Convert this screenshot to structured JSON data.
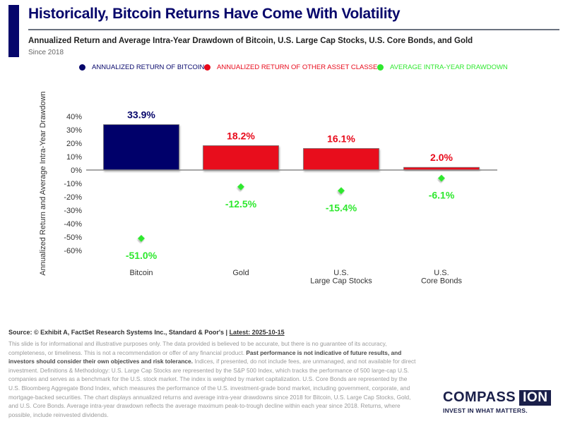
{
  "header": {
    "title": "Historically, Bitcoin Returns Have Come With Volatility",
    "subtitle": "Annualized Return and Average Intra-Year Drawdown of Bitcoin, U.S. Large Cap Stocks, U.S. Core Bonds, and Gold",
    "since": "Since 2018"
  },
  "colors": {
    "bitcoin": "#06066b",
    "other": "#e8091a",
    "drawdown": "#2fe82f",
    "brand": "#1a1f4a"
  },
  "chart_data": {
    "type": "bar",
    "title": "Annualized Return and Average Intra-Year Drawdown of Bitcoin, U.S. Large Cap Stocks, U.S. Core Bonds, and Gold",
    "ylabel": "Annualized Return and Average Intra-Year Drawdown",
    "xlabel": "",
    "ylim": [
      -60,
      40
    ],
    "yticks": [
      "40%",
      "30%",
      "20%",
      "10%",
      "0%",
      "-10%",
      "-20%",
      "-30%",
      "-40%",
      "-50%",
      "-60%"
    ],
    "ytick_values": [
      40,
      30,
      20,
      10,
      0,
      -10,
      -20,
      -30,
      -40,
      -50,
      -60
    ],
    "categories": [
      [
        "Bitcoin"
      ],
      [
        "Gold"
      ],
      [
        "U.S.",
        "Large Cap Stocks"
      ],
      [
        "U.S.",
        "Core Bonds"
      ]
    ],
    "legend_position": "top",
    "legend": [
      {
        "label": "ANNUALIZED RETURN OF BITCOIN",
        "color_key": "bitcoin"
      },
      {
        "label": "ANNUALIZED RETURN OF OTHER ASSET CLASSES",
        "color_key": "other"
      },
      {
        "label": "AVERAGE INTRA-YEAR DRAWDOWN",
        "color_key": "drawdown"
      }
    ],
    "series": [
      {
        "name": "Annualized Return",
        "type": "bar",
        "values": [
          33.9,
          18.2,
          16.1,
          2.0
        ],
        "labels": [
          "33.9%",
          "18.2%",
          "16.1%",
          "2.0%"
        ],
        "color_keys": [
          "bitcoin",
          "other",
          "other",
          "other"
        ]
      },
      {
        "name": "Average Intra-Year Drawdown",
        "type": "scatter",
        "values": [
          -51.0,
          -12.5,
          -15.4,
          -6.1
        ],
        "labels": [
          "-51.0%",
          "-12.5%",
          "-15.4%",
          "-6.1%"
        ],
        "color_key": "drawdown"
      }
    ]
  },
  "footer": {
    "source": "Source: © Exhibit A, FactSet Research Systems Inc., Standard & Poor's | ",
    "latest": "Latest: 2025-10-15",
    "disclaimer_1": "This slide is for informational and illustrative purposes only. The data provided is believed to be accurate, but there is no guarantee of its accuracy, completeness, or timeliness. This is not a recommendation or offer of any financial product. ",
    "disclaimer_bold": "Past performance is not indicative of future results, and investors should consider their own objectives and risk tolerance.",
    "disclaimer_2": " Indices, if presented, do not include fees, are unmanaged, and not available for direct investment. Definitions & Methodology: U.S. Large Cap Stocks are represented by the S&P 500 Index, which tracks the performance of 500 large-cap U.S. companies and serves as a benchmark for the U.S. stock market. The index is weighted by market capitalization. U.S. Core Bonds are represented by the U.S. Bloomberg Aggregate Bond Index, which measures the performance of the U.S. investment-grade bond market, including government, corporate, and mortgage-backed securities. The chart displays annualized returns and average intra-year drawdowns since 2018 for Bitcoin, U.S. Large Cap Stocks, Gold, and U.S. Core Bonds. Average intra-year drawdown reflects the average maximum peak-to-trough decline within each year since 2018. Returns, where possible, include reinvested dividends."
  },
  "logo": {
    "compass": "COMPASS",
    "ion": "ION",
    "tagline": "INVEST IN WHAT MATTERS."
  }
}
